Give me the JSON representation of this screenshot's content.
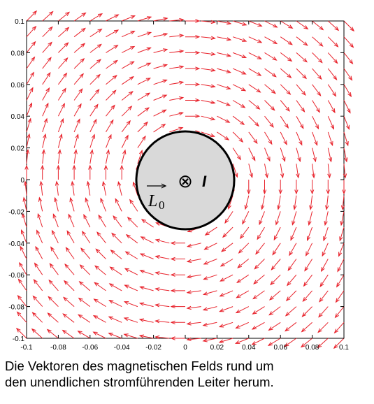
{
  "chart_data": {
    "type": "quiver",
    "title": "",
    "xlabel": "",
    "ylabel": "",
    "xlim": [
      -0.1,
      0.1
    ],
    "ylim": [
      -0.1,
      0.1
    ],
    "x_ticks": [
      "-0.1",
      "-0.08",
      "-0.06",
      "-0.04",
      "-0.02",
      "0",
      "0.02",
      "0.04",
      "0.06",
      "0.08",
      "0.1"
    ],
    "y_ticks": [
      "0.1",
      "0.08",
      "0.06",
      "0.04",
      "0.02",
      "0",
      "-0.02",
      "-0.04",
      "-0.06",
      "-0.08",
      "-0.1"
    ],
    "grid": false,
    "field": {
      "description_type": "circular magnetic field around a straight infinite conductor",
      "direction": "clockwise",
      "grid_points_per_axis": 21,
      "color": "#e8222b"
    },
    "conductor": {
      "center": [
        0,
        0
      ],
      "radius": 0.03,
      "fill": "#d9d9d9",
      "current_symbol": "⊗",
      "current_label": "I",
      "vector_label": "L",
      "vector_subscript": "0"
    }
  },
  "caption": {
    "line1": "Die Vektoren des magnetischen Felds rund um",
    "line2": "den unendlichen stromführenden Leiter herum."
  }
}
